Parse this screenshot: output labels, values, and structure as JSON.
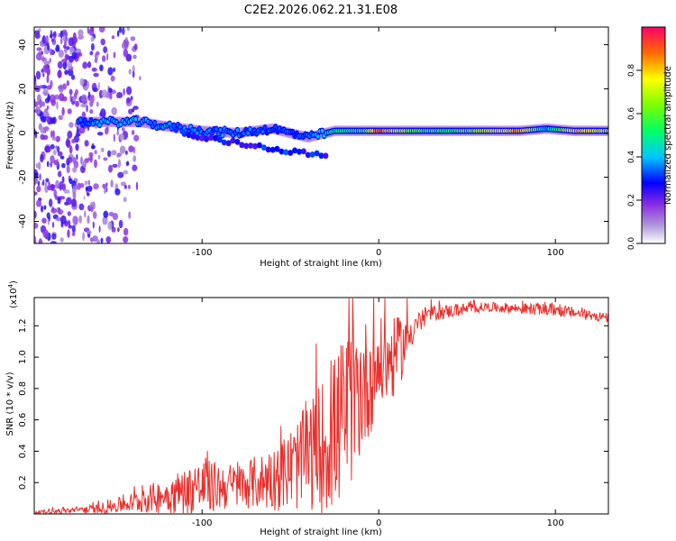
{
  "title": "C2E2.2026.062.21.31.E08",
  "chart_data": [
    {
      "type": "heatmap",
      "xlabel": "Height of straight line (km)",
      "ylabel": "Frequency (Hz)",
      "xlim": [
        -195,
        130
      ],
      "ylim": [
        -50,
        48
      ],
      "xticks": [
        -100,
        0,
        100
      ],
      "yticks": [
        -40,
        -20,
        0,
        20,
        40
      ],
      "colorbar": {
        "label": "Normalized spectral amplitude",
        "range": [
          0,
          1
        ],
        "ticks": [
          0.0,
          0.2,
          0.4,
          0.6,
          0.8
        ],
        "tick_labels": [
          "0.0",
          "0.2",
          "0.4",
          "0.6",
          "0.8"
        ]
      },
      "ridge": [
        {
          "x": -165,
          "f": 5,
          "amp": 0.35
        },
        {
          "x": -150,
          "f": 5,
          "amp": 0.4
        },
        {
          "x": -135,
          "f": 5,
          "amp": 0.4
        },
        {
          "x": -120,
          "f": 3,
          "amp": 0.35
        },
        {
          "x": -100,
          "f": 1,
          "amp": 0.35
        },
        {
          "x": -80,
          "f": 0,
          "amp": 0.35
        },
        {
          "x": -60,
          "f": 2,
          "amp": 0.3
        },
        {
          "x": -40,
          "f": -2,
          "amp": 0.35
        },
        {
          "x": -25,
          "f": 1,
          "amp": 0.5
        },
        {
          "x": -10,
          "f": 1,
          "amp": 0.55
        },
        {
          "x": 0,
          "f": 1,
          "amp": 0.9
        },
        {
          "x": 20,
          "f": 1,
          "amp": 0.6
        },
        {
          "x": 40,
          "f": 1,
          "amp": 0.55
        },
        {
          "x": 60,
          "f": 1,
          "amp": 0.7
        },
        {
          "x": 80,
          "f": 1,
          "amp": 0.85
        },
        {
          "x": 95,
          "f": 2,
          "amp": 0.4
        },
        {
          "x": 110,
          "f": 1,
          "amp": 0.8
        },
        {
          "x": 130,
          "f": 1,
          "amp": 0.7
        }
      ]
    },
    {
      "type": "line",
      "xlabel": "Height of straight line (km)",
      "ylabel": "SNR (10 * v/v)",
      "scale_label": "(x10",
      "scale_exp": "4",
      "scale_close": ")",
      "xlim": [
        -195,
        130
      ],
      "ylim": [
        0,
        1.38
      ],
      "xticks": [
        -100,
        0,
        100
      ],
      "yticks": [
        0.2,
        0.4,
        0.6,
        0.8,
        1.0,
        1.2
      ],
      "ytick_labels": [
        "0.2",
        "0.4",
        "0.6",
        "0.8",
        "1.0",
        "1.2"
      ],
      "series": [
        {
          "name": "SNR",
          "color": "#e8302c",
          "envelope": [
            {
              "x": -195,
              "base": 0.01,
              "noise": 0.01
            },
            {
              "x": -160,
              "base": 0.03,
              "noise": 0.03
            },
            {
              "x": -140,
              "base": 0.07,
              "noise": 0.06
            },
            {
              "x": -120,
              "base": 0.12,
              "noise": 0.12
            },
            {
              "x": -100,
              "base": 0.17,
              "noise": 0.18
            },
            {
              "x": -80,
              "base": 0.18,
              "noise": 0.14
            },
            {
              "x": -60,
              "base": 0.22,
              "noise": 0.2
            },
            {
              "x": -45,
              "base": 0.32,
              "noise": 0.3
            },
            {
              "x": -30,
              "base": 0.45,
              "noise": 0.45
            },
            {
              "x": -20,
              "base": 0.6,
              "noise": 0.55
            },
            {
              "x": -10,
              "base": 0.8,
              "noise": 0.45
            },
            {
              "x": 0,
              "base": 0.95,
              "noise": 0.3
            },
            {
              "x": 10,
              "base": 1.0,
              "noise": 0.25
            },
            {
              "x": 20,
              "base": 1.2,
              "noise": 0.1
            },
            {
              "x": 30,
              "base": 1.28,
              "noise": 0.05
            },
            {
              "x": 60,
              "base": 1.32,
              "noise": 0.03
            },
            {
              "x": 100,
              "base": 1.3,
              "noise": 0.04
            },
            {
              "x": 130,
              "base": 1.25,
              "noise": 0.03
            }
          ]
        }
      ]
    }
  ]
}
